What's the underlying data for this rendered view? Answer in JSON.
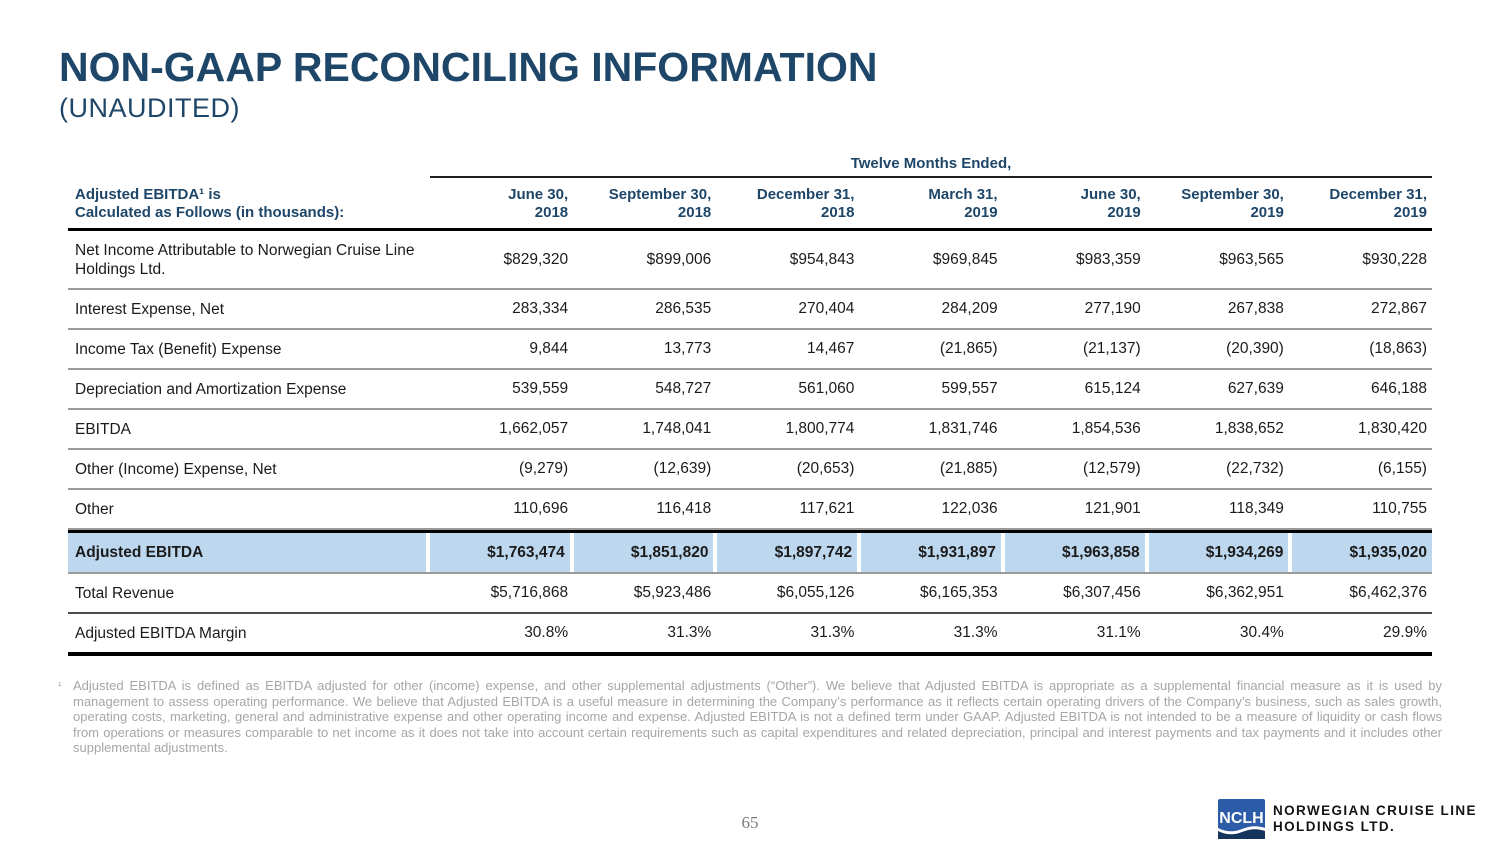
{
  "page": {
    "title": "NON-GAAP RECONCILING INFORMATION",
    "subtitle": "(UNAUDITED)",
    "page_number": "65"
  },
  "colors": {
    "heading_navy": "#1E4668",
    "highlight_blue": "#BDD7EE",
    "footnote_gray": "#A6A6A6",
    "logo_blue": "#2C5BA7",
    "logo_wave_navy": "#16355C"
  },
  "table": {
    "group_header": "Twelve Months Ended,",
    "row_header_line1": "Adjusted EBITDA¹ is",
    "row_header_line2": "Calculated as Follows (in thousands):",
    "columns": [
      {
        "line1": "June 30,",
        "line2": "2018"
      },
      {
        "line1": "September 30,",
        "line2": "2018"
      },
      {
        "line1": "December 31,",
        "line2": "2018"
      },
      {
        "line1": "March 31,",
        "line2": "2019"
      },
      {
        "line1": "June 30,",
        "line2": "2019"
      },
      {
        "line1": "September 30,",
        "line2": "2019"
      },
      {
        "line1": "December 31,",
        "line2": "2019"
      }
    ],
    "rows": [
      {
        "label": "Net Income Attributable to Norwegian Cruise Line Holdings Ltd.",
        "tall": true,
        "values": [
          "$829,320",
          "$899,006",
          "$954,843",
          "$969,845",
          "$983,359",
          "$963,565",
          "$930,228"
        ]
      },
      {
        "label": "Interest Expense, Net",
        "values": [
          "283,334",
          "286,535",
          "270,404",
          "284,209",
          "277,190",
          "267,838",
          "272,867"
        ]
      },
      {
        "label": "Income Tax (Benefit) Expense",
        "values": [
          "9,844",
          "13,773",
          "14,467",
          "(21,865)",
          "(21,137)",
          "(20,390)",
          "(18,863)"
        ]
      },
      {
        "label": "Depreciation and Amortization Expense",
        "values": [
          "539,559",
          "548,727",
          "561,060",
          "599,557",
          "615,124",
          "627,639",
          "646,188"
        ]
      },
      {
        "label": "EBITDA",
        "values": [
          "1,662,057",
          "1,748,041",
          "1,800,774",
          "1,831,746",
          "1,854,536",
          "1,838,652",
          "1,830,420"
        ]
      },
      {
        "label": "Other (Income) Expense, Net",
        "values": [
          "(9,279)",
          "(12,639)",
          "(20,653)",
          "(21,885)",
          "(12,579)",
          "(22,732)",
          "(6,155)"
        ]
      },
      {
        "label": "Other",
        "values": [
          "110,696",
          "116,418",
          "117,621",
          "122,036",
          "121,901",
          "118,349",
          "110,755"
        ]
      },
      {
        "label": "Adjusted EBITDA",
        "highlight": true,
        "values": [
          "$1,763,474",
          "$1,851,820",
          "$1,897,742",
          "$1,931,897",
          "$1,963,858",
          "$1,934,269",
          "$1,935,020"
        ]
      },
      {
        "label": "Total Revenue",
        "dark_sep": true,
        "values": [
          "$5,716,868",
          "$5,923,486",
          "$6,055,126",
          "$6,165,353",
          "$6,307,456",
          "$6,362,951",
          "$6,462,376"
        ]
      },
      {
        "label": "Adjusted EBITDA Margin",
        "last": true,
        "values": [
          "30.8%",
          "31.3%",
          "31.3%",
          "31.3%",
          "31.1%",
          "30.4%",
          "29.9%"
        ]
      }
    ]
  },
  "footnote": {
    "marker": "¹",
    "text": "Adjusted EBITDA is defined as EBITDA adjusted for other (income) expense, and other supplemental adjustments (“Other”). We believe that Adjusted EBITDA is appropriate as a supplemental financial measure as it is used by management to assess operating performance. We believe that Adjusted EBITDA is a useful measure in determining the Company’s performance as it reflects certain operating drivers of the Company’s business, such as sales growth, operating costs, marketing, general and administrative expense and other operating income and expense. Adjusted EBITDA is not a defined term under GAAP. Adjusted EBITDA is not intended to be a measure of liquidity or cash flows from operations or measures comparable to net income as it does not take into account certain requirements such as capital expenditures and related depreciation, principal and interest payments and tax payments and it includes other supplemental adjustments."
  },
  "logo": {
    "badge": "NCLH",
    "line1": "NORWEGIAN CRUISE LINE",
    "line2": "HOLDINGS LTD."
  }
}
